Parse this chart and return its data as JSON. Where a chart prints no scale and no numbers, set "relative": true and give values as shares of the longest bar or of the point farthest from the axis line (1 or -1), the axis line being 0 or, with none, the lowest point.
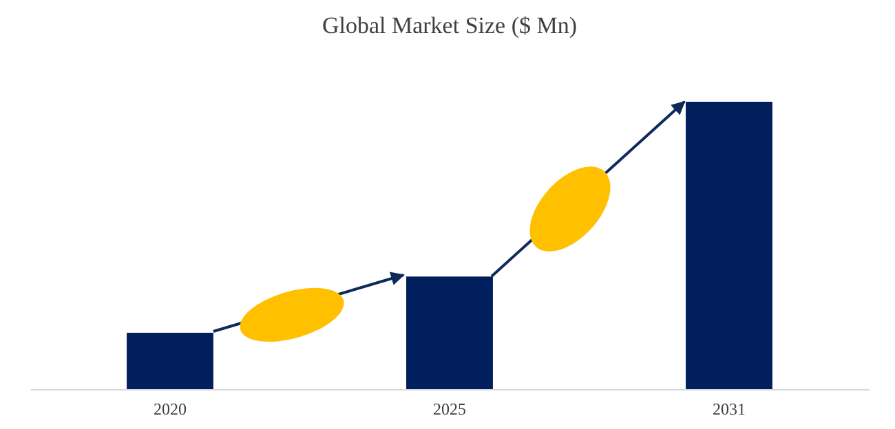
{
  "chart_data": {
    "type": "bar",
    "title": "Global Market Size ($ Mn)",
    "categories": [
      "2020",
      "2025",
      "2031"
    ],
    "values": [
      0.196,
      0.392,
      1
    ],
    "color": "#001f5c",
    "relative": true
  }
}
